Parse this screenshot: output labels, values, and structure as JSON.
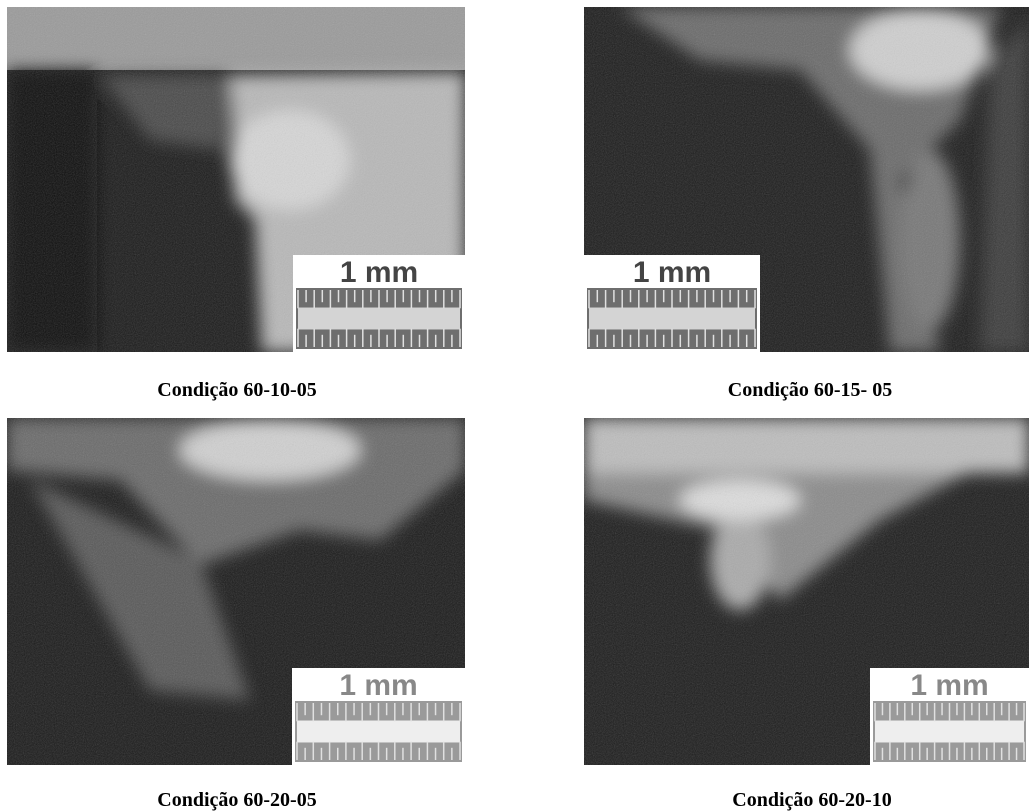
{
  "figure": {
    "panels": [
      {
        "caption": "Condição 60-10-05",
        "scale_label": "1 mm"
      },
      {
        "caption": "Condição 60-15- 05",
        "scale_label": "1 mm"
      },
      {
        "caption": "Condição 60-20-05",
        "scale_label": "1 mm"
      },
      {
        "caption": "Condição 60-20-10",
        "scale_label": "1 mm"
      }
    ]
  }
}
